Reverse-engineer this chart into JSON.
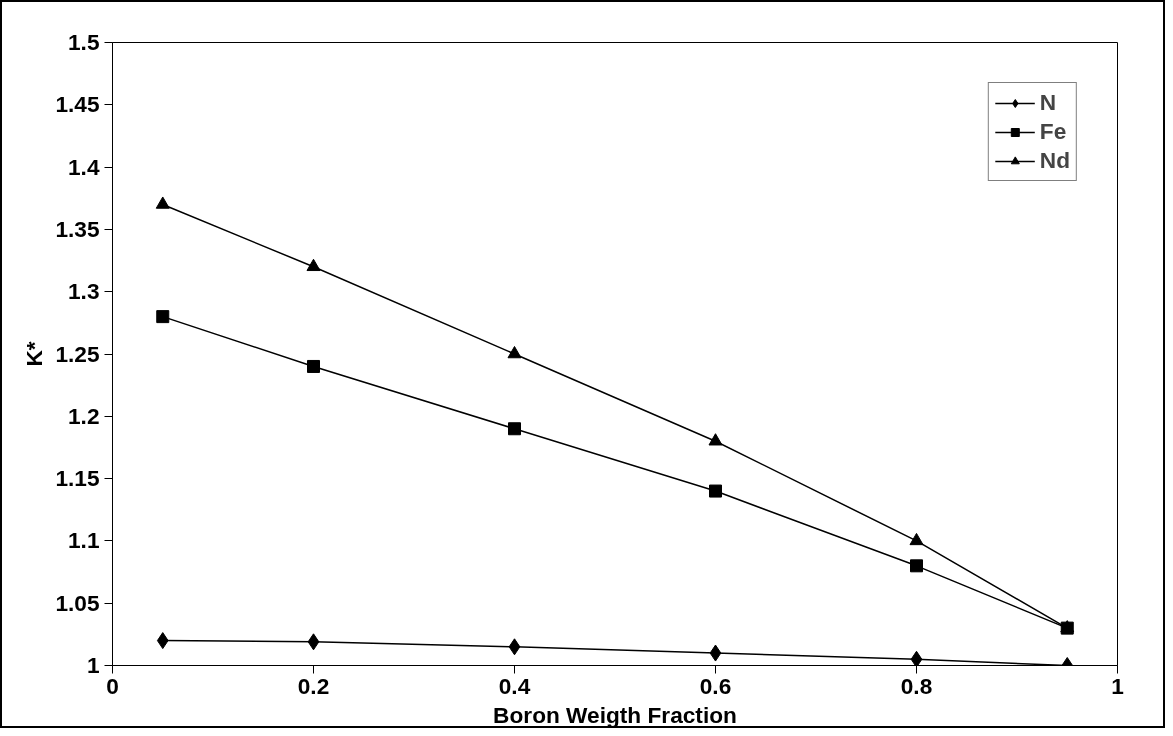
{
  "chart_data": {
    "type": "line",
    "xlabel": "Boron Weigth Fraction",
    "ylabel": "K*",
    "x": [
      0.05,
      0.2,
      0.4,
      0.6,
      0.8,
      0.95
    ],
    "series": [
      {
        "name": "N",
        "color": "#000000",
        "marker": "diamond",
        "values": [
          1.02,
          1.019,
          1.015,
          1.01,
          1.005,
          1.0
        ]
      },
      {
        "name": "Fe",
        "color": "#000000",
        "marker": "square",
        "values": [
          1.28,
          1.24,
          1.19,
          1.14,
          1.08,
          1.03
        ]
      },
      {
        "name": "Nd",
        "color": "#000000",
        "marker": "triangle",
        "values": [
          1.37,
          1.32,
          1.25,
          1.18,
          1.1,
          1.03
        ]
      }
    ],
    "xlim": [
      0,
      1
    ],
    "xticks": [
      0,
      0.2,
      0.4,
      0.6,
      0.8,
      1
    ],
    "ylim": [
      1,
      1.5
    ],
    "yticks": [
      1,
      1.05,
      1.1,
      1.15,
      1.2,
      1.25,
      1.3,
      1.35,
      1.4,
      1.45,
      1.5
    ],
    "grid": false,
    "legend": "top right",
    "line_style": "solid"
  }
}
